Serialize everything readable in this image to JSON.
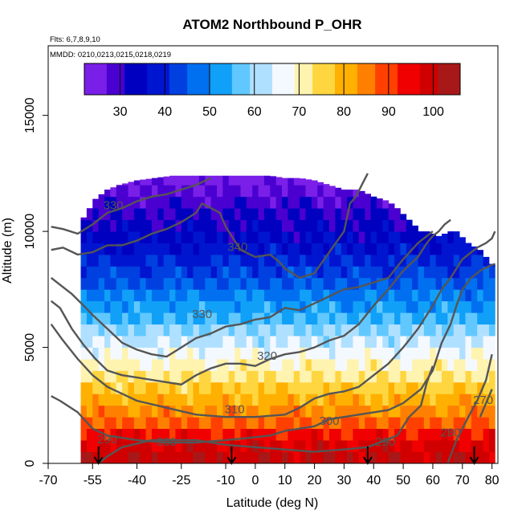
{
  "chart_data": {
    "type": "heatmap",
    "title": "ATOM2 Northbound P_OHR",
    "subtitle_flights": "Flts: 6,7,8,9,10",
    "subtitle_dates": "MMDD: 0210,0213,0215,0218,0219",
    "xlabel": "Latitude (deg N)",
    "ylabel": "Altitude (m)",
    "xlim": [
      -70,
      82
    ],
    "ylim": [
      0,
      18000
    ],
    "x_ticks": [
      -70,
      -55,
      -40,
      -25,
      -10,
      0,
      10,
      20,
      30,
      40,
      50,
      60,
      70,
      80
    ],
    "x_tick_labels": [
      "-70",
      "-55",
      "-40",
      "-25",
      "-10",
      "0",
      "10",
      "20",
      "30",
      "40",
      "50",
      "60",
      "70",
      "80"
    ],
    "y_ticks": [
      0,
      5000,
      10000,
      15000
    ],
    "y_tick_labels": [
      "0",
      "5000",
      "10000",
      "15000"
    ],
    "colorbar": {
      "min": 22,
      "max": 106,
      "ticks": [
        30,
        40,
        50,
        60,
        70,
        80,
        90,
        100
      ],
      "tick_labels": [
        "30",
        "40",
        "50",
        "60",
        "70",
        "80",
        "90",
        "100"
      ],
      "colors": [
        "#7a1fe8",
        "#4a00d0",
        "#0000c0",
        "#0015d0",
        "#0040e0",
        "#0070f0",
        "#10a0f8",
        "#60c8ff",
        "#b0e0ff",
        "#f4f9ff",
        "#fff3b0",
        "#ffd640",
        "#ffb000",
        "#ff8000",
        "#ff4000",
        "#f00000",
        "#d00000",
        "#a81818"
      ]
    },
    "profile": {
      "altitude_bands": [
        0,
        500,
        1000,
        1500,
        2000,
        2500,
        3000,
        3500,
        4000,
        4500,
        5000,
        5500,
        6000,
        6500,
        7000,
        7500,
        8000,
        8500,
        9000,
        9500,
        10000,
        10500,
        11000,
        11500,
        12000,
        12500
      ],
      "band_values": [
        100,
        98,
        94,
        88,
        84,
        80,
        77,
        73,
        70,
        67,
        63,
        59,
        55,
        52,
        49,
        46,
        43,
        40,
        37,
        35,
        33,
        31,
        29,
        27,
        25,
        23
      ]
    },
    "top_of_data": {
      "lat": [
        -59,
        -58,
        -56,
        -54,
        -50,
        -46,
        -40,
        -34,
        -28,
        -24,
        -20,
        -16,
        -12,
        -8,
        -4,
        0,
        5,
        10,
        15,
        20,
        25,
        30,
        35,
        40,
        45,
        48,
        52,
        56,
        58,
        62,
        66,
        68,
        72,
        76,
        80
      ],
      "alt": [
        10200,
        10600,
        11000,
        11400,
        11800,
        12000,
        12200,
        12300,
        12400,
        12400,
        12400,
        12400,
        12400,
        12400,
        12400,
        12400,
        12400,
        12300,
        12300,
        12200,
        12000,
        11800,
        11800,
        11500,
        11300,
        11000,
        10500,
        10000,
        10000,
        9800,
        10000,
        10000,
        9500,
        9200,
        8600
      ]
    },
    "theta_contours": [
      {
        "label": "270",
        "lat": [
          76,
          80
        ],
        "alt": [
          2000,
          3200
        ]
      },
      {
        "label": "280",
        "lat": [
          65,
          68,
          72,
          75,
          78,
          80
        ],
        "alt": [
          0,
          1000,
          2000,
          2700,
          3600,
          4700
        ]
      },
      {
        "label": "290",
        "lat": [
          -53,
          -50,
          -45,
          -35,
          -20,
          -10,
          0,
          10,
          20,
          30,
          38,
          42,
          48,
          52,
          56,
          58,
          60
        ],
        "alt": [
          0,
          300,
          700,
          1000,
          1000,
          800,
          700,
          600,
          500,
          600,
          700,
          900,
          1200,
          2000,
          2500,
          3500,
          4200
        ]
      },
      {
        "label": "300",
        "lat": [
          -69,
          -66,
          -60,
          -55,
          -50,
          -40,
          -30,
          -20,
          -10,
          -2,
          5,
          10,
          20,
          25,
          30,
          35,
          40,
          45,
          50,
          56,
          60,
          63,
          66,
          68,
          70,
          73,
          76,
          79,
          81
        ],
        "alt": [
          2900,
          2700,
          2200,
          1500,
          1200,
          1000,
          900,
          900,
          1000,
          1100,
          1200,
          1400,
          1600,
          1900,
          2000,
          2100,
          2200,
          2300,
          2600,
          3200,
          4000,
          5200,
          6000,
          6800,
          7500,
          8000,
          8300,
          8500,
          8600
        ]
      },
      {
        "label": "310",
        "lat": [
          -69,
          -65,
          -60,
          -55,
          -50,
          -45,
          -40,
          -30,
          -20,
          -10,
          0,
          10,
          15,
          20,
          25,
          30,
          35,
          40,
          45,
          50,
          55,
          60,
          63,
          66,
          70,
          72,
          75,
          78,
          80,
          81
        ],
        "alt": [
          6000,
          5300,
          4500,
          3800,
          3300,
          3000,
          2700,
          2400,
          2100,
          2000,
          2000,
          2100,
          2400,
          2800,
          3000,
          3100,
          3300,
          3800,
          4300,
          5000,
          5800,
          6800,
          7500,
          8000,
          8800,
          9000,
          9300,
          9500,
          9700,
          10000
        ]
      },
      {
        "label": "320",
        "lat": [
          -69,
          -66,
          -62,
          -58,
          -54,
          -50,
          -45,
          -40,
          -35,
          -30,
          -25,
          -20,
          -15,
          -10,
          -5,
          0,
          5,
          10,
          15,
          20,
          25,
          30,
          35,
          40,
          45,
          50,
          55,
          58,
          60,
          62,
          64,
          66
        ],
        "alt": [
          7000,
          6700,
          5800,
          5100,
          4500,
          4000,
          3800,
          3700,
          3600,
          3500,
          3400,
          3800,
          4100,
          4300,
          4300,
          4200,
          4500,
          4700,
          4800,
          5000,
          5300,
          5500,
          6000,
          6800,
          7500,
          8300,
          8900,
          9500,
          9800,
          10000,
          10300,
          10500
        ]
      },
      {
        "label": "330",
        "lat": [
          -69,
          -66,
          -62,
          -58,
          -55,
          -50,
          -45,
          -40,
          -35,
          -30,
          -25,
          -20,
          -15,
          -10,
          -5,
          0,
          5,
          10,
          15,
          20,
          25,
          30,
          35,
          40,
          45,
          50,
          55,
          58,
          60
        ],
        "alt": [
          8000,
          7700,
          7300,
          6800,
          6400,
          5800,
          5200,
          4900,
          4700,
          4600,
          5000,
          5400,
          5600,
          5900,
          6000,
          6200,
          6300,
          6700,
          6600,
          6900,
          7200,
          7500,
          7600,
          7800,
          8000,
          8800,
          9500,
          9800,
          10000
        ]
      },
      {
        "label": "330",
        "lat": [
          -69,
          -65,
          -60,
          -55,
          -50,
          -45,
          -40,
          -35,
          -30,
          -25,
          -20,
          -15
        ],
        "alt": [
          10200,
          10100,
          9900,
          10300,
          10800,
          11000,
          11300,
          11500,
          11600,
          11800,
          12000,
          12300
        ]
      },
      {
        "label": "340",
        "lat": [
          -69,
          -65,
          -60,
          -55,
          -50,
          -45,
          -40,
          -35,
          -30,
          -25,
          -20,
          -18,
          -15,
          -12,
          -10,
          -8,
          -5,
          0,
          5,
          8,
          10,
          15,
          20,
          25,
          30,
          32,
          34,
          36,
          38
        ],
        "alt": [
          9200,
          9300,
          9000,
          9100,
          9400,
          9400,
          9600,
          9900,
          10100,
          10400,
          10800,
          11200,
          11000,
          10800,
          10200,
          9800,
          9200,
          8900,
          9000,
          8700,
          8400,
          8000,
          8200,
          9100,
          10000,
          11200,
          11500,
          12000,
          12500
        ]
      }
    ],
    "markers": [
      {
        "lat": -53
      },
      {
        "lat": -8
      },
      {
        "lat": 38
      },
      {
        "lat": 74
      }
    ],
    "contour_labels": [
      {
        "text": "330",
        "lat": -48,
        "alt": 11100
      },
      {
        "text": "340",
        "lat": -6,
        "alt": 9300
      },
      {
        "text": "330",
        "lat": -18,
        "alt": 6400
      },
      {
        "text": "320",
        "lat": 4,
        "alt": 4600
      },
      {
        "text": "310",
        "lat": -7,
        "alt": 2300
      },
      {
        "text": "300",
        "lat": 25,
        "alt": 1800
      },
      {
        "text": "300",
        "lat": -30,
        "alt": 900
      },
      {
        "text": "290",
        "lat": -50,
        "alt": 1000
      },
      {
        "text": "290",
        "lat": 44,
        "alt": 900
      },
      {
        "text": "280",
        "lat": 66,
        "alt": 1300
      },
      {
        "text": "270",
        "lat": 77,
        "alt": 2700
      }
    ]
  }
}
